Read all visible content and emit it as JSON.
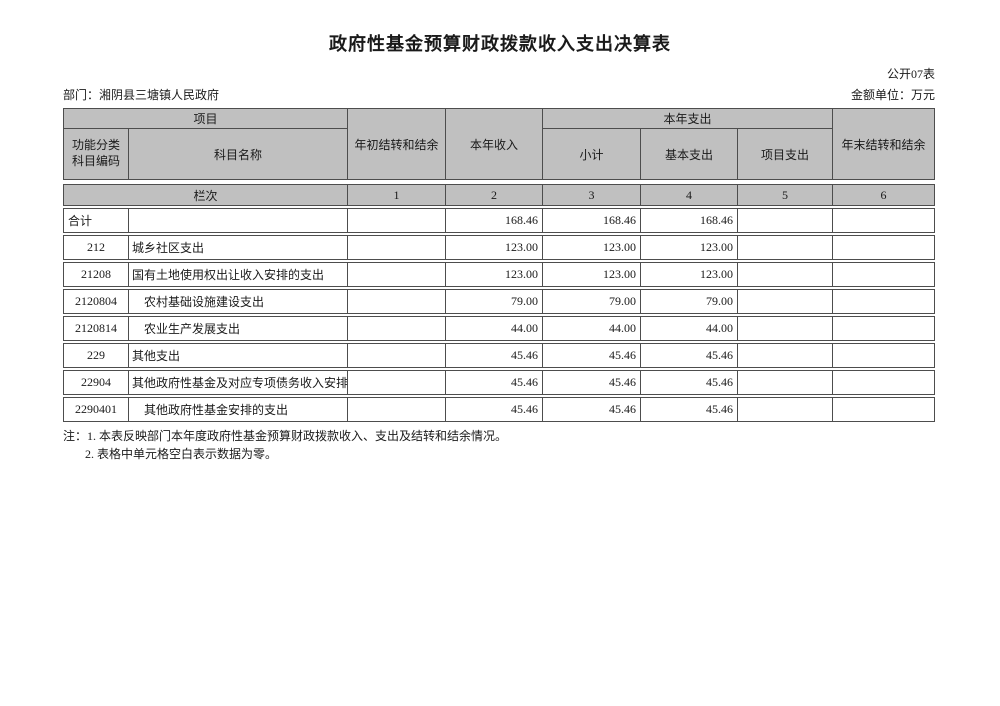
{
  "page": {
    "title": "政府性基金预算财政拨款收入支出决算表",
    "table_code": "公开07表",
    "department_label": "部门：湘阴县三塘镇人民政府",
    "unit_label": "金额单位：万元"
  },
  "colors": {
    "header_fill": "#c0c0c0",
    "border": "#4d4d4d",
    "text": "#1a1a1a"
  },
  "table": {
    "header": {
      "project": "项目",
      "func_code": "功能分类科目编码",
      "subject_name": "科目名称",
      "begin_balance": "年初结转和结余",
      "year_income": "本年收入",
      "year_expense": "本年支出",
      "subtotal": "小计",
      "basic_expense": "基本支出",
      "project_expense": "项目支出",
      "end_balance": "年末结转和结余",
      "col_index_label": "栏次",
      "col_indexes": [
        "1",
        "2",
        "3",
        "4",
        "5",
        "6"
      ]
    },
    "rows": [
      {
        "code": "合计",
        "name": "",
        "v1": "",
        "v2": "168.46",
        "v3": "168.46",
        "v4": "168.46",
        "v5": "",
        "v6": ""
      },
      {
        "code": "212",
        "name": "城乡社区支出",
        "v1": "",
        "v2": "123.00",
        "v3": "123.00",
        "v4": "123.00",
        "v5": "",
        "v6": ""
      },
      {
        "code": "21208",
        "name": "国有土地使用权出让收入安排的支出",
        "v1": "",
        "v2": "123.00",
        "v3": "123.00",
        "v4": "123.00",
        "v5": "",
        "v6": ""
      },
      {
        "code": "2120804",
        "name": "农村基础设施建设支出",
        "v1": "",
        "v2": "79.00",
        "v3": "79.00",
        "v4": "79.00",
        "v5": "",
        "v6": ""
      },
      {
        "code": "2120814",
        "name": "农业生产发展支出",
        "v1": "",
        "v2": "44.00",
        "v3": "44.00",
        "v4": "44.00",
        "v5": "",
        "v6": ""
      },
      {
        "code": "229",
        "name": "其他支出",
        "v1": "",
        "v2": "45.46",
        "v3": "45.46",
        "v4": "45.46",
        "v5": "",
        "v6": ""
      },
      {
        "code": "22904",
        "name": "其他政府性基金及对应专项债务收入安排的",
        "v1": "",
        "v2": "45.46",
        "v3": "45.46",
        "v4": "45.46",
        "v5": "",
        "v6": ""
      },
      {
        "code": "2290401",
        "name": "其他政府性基金安排的支出",
        "v1": "",
        "v2": "45.46",
        "v3": "45.46",
        "v4": "45.46",
        "v5": "",
        "v6": ""
      }
    ]
  },
  "notes": {
    "line1": "注：1. 本表反映部门本年度政府性基金预算财政拨款收入、支出及结转和结余情况。",
    "line2": "2. 表格中单元格空白表示数据为零。"
  }
}
